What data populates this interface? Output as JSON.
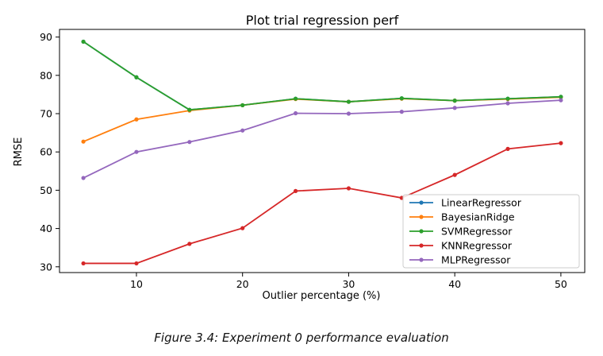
{
  "chart_data": {
    "type": "line",
    "title": "Plot trial regression perf",
    "xlabel": "Outlier percentage (%)",
    "ylabel": "RMSE",
    "x": [
      5,
      10,
      15,
      20,
      25,
      30,
      35,
      40,
      45,
      50
    ],
    "xticks": [
      10,
      20,
      30,
      40,
      50
    ],
    "yticks": [
      30,
      40,
      50,
      60,
      70,
      80,
      90
    ],
    "xlim": [
      2.75,
      52.25
    ],
    "ylim": [
      28.5,
      92.0
    ],
    "grid": false,
    "legend_position": "lower-right",
    "series": [
      {
        "name": "LinearRegressor",
        "color": "#1f77b4",
        "values": [
          88.8,
          79.5,
          71.0,
          72.2,
          73.9,
          73.1,
          74.0,
          73.4,
          73.9,
          74.4
        ]
      },
      {
        "name": "BayesianRidge",
        "color": "#ff7f0e",
        "values": [
          62.7,
          68.5,
          70.8,
          72.2,
          73.8,
          73.1,
          73.9,
          73.4,
          73.8,
          74.3
        ]
      },
      {
        "name": "SVMRegressor",
        "color": "#2ca02c",
        "values": [
          88.8,
          79.5,
          71.0,
          72.2,
          73.9,
          73.1,
          74.0,
          73.4,
          73.9,
          74.4
        ]
      },
      {
        "name": "KNNRegressor",
        "color": "#d62728",
        "values": [
          30.9,
          30.9,
          36.0,
          40.1,
          49.8,
          50.5,
          48.0,
          54.0,
          60.8,
          62.3
        ]
      },
      {
        "name": "MLPRegressor",
        "color": "#9467bd",
        "values": [
          53.2,
          60.0,
          62.6,
          65.6,
          70.1,
          70.0,
          70.5,
          71.5,
          72.7,
          73.5
        ]
      }
    ]
  },
  "caption": "Figure 3.4: Experiment 0 performance evaluation"
}
